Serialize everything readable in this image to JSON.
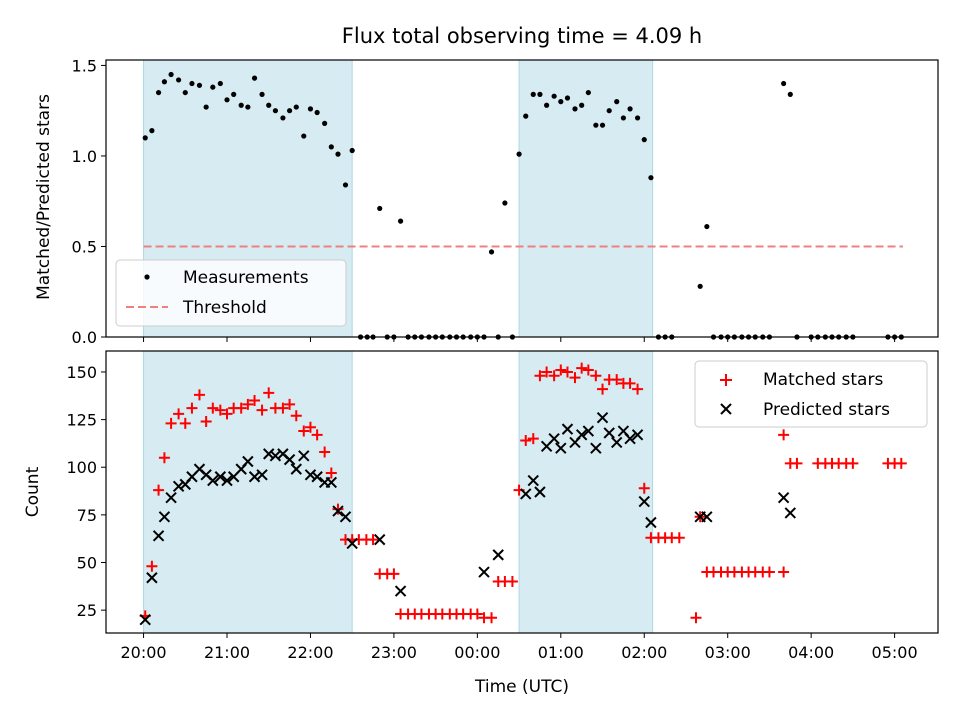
{
  "chart_data": [
    {
      "type": "scatter",
      "title": "Flux total observing time = 4.09 h",
      "xlabel": "",
      "ylabel": "Matched/Predicted stars",
      "xlim": [
        -0.45,
        9.52
      ],
      "ylim": [
        0,
        1.53
      ],
      "yticks": [
        0,
        0.5,
        1.0,
        1.5
      ],
      "ytick_labels": [
        "0.0",
        "0.5",
        "1.0",
        "1.5"
      ],
      "legend_position": "lower-left",
      "shaded_spans": [
        [
          0.0,
          2.5
        ],
        [
          4.5,
          6.1
        ]
      ],
      "threshold": {
        "name": "Threshold",
        "value": 0.5,
        "x_range": [
          0.0,
          9.1
        ],
        "color": "#f08080"
      },
      "series": [
        {
          "name": "Measurements",
          "marker": "dot",
          "color": "#000000",
          "x": [
            0.02,
            0.1,
            0.18,
            0.25,
            0.33,
            0.42,
            0.5,
            0.58,
            0.67,
            0.75,
            0.83,
            0.92,
            1.0,
            1.08,
            1.17,
            1.25,
            1.33,
            1.42,
            1.5,
            1.58,
            1.67,
            1.75,
            1.83,
            1.92,
            2.0,
            2.08,
            2.17,
            2.25,
            2.33,
            2.42,
            2.5,
            2.6,
            2.68,
            2.75,
            2.83,
            2.92,
            3.0,
            3.08,
            3.17,
            3.25,
            3.33,
            3.42,
            3.5,
            3.58,
            3.67,
            3.75,
            3.83,
            3.92,
            4.0,
            4.08,
            4.17,
            4.25,
            4.33,
            4.42,
            4.5,
            4.58,
            4.67,
            4.75,
            4.83,
            4.92,
            5.0,
            5.08,
            5.17,
            5.25,
            5.33,
            5.42,
            5.5,
            5.58,
            5.67,
            5.75,
            5.83,
            5.92,
            6.0,
            6.08,
            6.17,
            6.25,
            6.33,
            6.67,
            6.75,
            6.83,
            6.92,
            7.0,
            7.08,
            7.17,
            7.25,
            7.33,
            7.42,
            7.5,
            7.67,
            7.75,
            7.83,
            8.0,
            8.08,
            8.17,
            8.25,
            8.33,
            8.42,
            8.5,
            8.92,
            9.0,
            9.08
          ],
          "y": [
            1.1,
            1.14,
            1.35,
            1.41,
            1.45,
            1.42,
            1.35,
            1.4,
            1.39,
            1.27,
            1.38,
            1.4,
            1.31,
            1.34,
            1.28,
            1.27,
            1.43,
            1.34,
            1.28,
            1.25,
            1.21,
            1.25,
            1.27,
            1.11,
            1.26,
            1.24,
            1.18,
            1.05,
            1.01,
            0.84,
            1.03,
            0,
            0,
            0,
            0.71,
            0,
            0,
            0.64,
            0,
            0,
            0,
            0,
            0,
            0,
            0,
            0,
            0,
            0,
            0,
            0,
            0.47,
            0,
            0.74,
            0,
            1.01,
            1.22,
            1.34,
            1.34,
            1.28,
            1.33,
            1.3,
            1.32,
            1.26,
            1.28,
            1.35,
            1.17,
            1.17,
            1.25,
            1.3,
            1.21,
            1.26,
            1.21,
            1.09,
            0.88,
            0,
            0,
            0,
            0.28,
            0.61,
            0,
            0,
            0,
            0,
            0,
            0,
            0,
            0,
            0,
            1.4,
            1.34,
            0,
            0,
            0,
            0,
            0,
            0,
            0,
            0,
            0,
            0,
            0
          ]
        },
        {
          "name": "Threshold",
          "marker": "dashed-line",
          "color": "#f08080"
        }
      ]
    },
    {
      "type": "scatter",
      "title": "",
      "xlabel": "Time (UTC)",
      "ylabel": "Count",
      "xlim": [
        -0.45,
        9.52
      ],
      "ylim": [
        13,
        161
      ],
      "yticks": [
        25,
        50,
        75,
        100,
        125,
        150
      ],
      "xticks": [
        0,
        1,
        2,
        3,
        4,
        5,
        6,
        7,
        8,
        9
      ],
      "xtick_labels": [
        "20:00",
        "21:00",
        "22:00",
        "23:00",
        "00:00",
        "01:00",
        "02:00",
        "03:00",
        "04:00",
        "05:00"
      ],
      "legend_position": "upper-right",
      "shaded_spans": [
        [
          0.0,
          2.5
        ],
        [
          4.5,
          6.1
        ]
      ],
      "series": [
        {
          "name": "Matched stars",
          "marker": "plus",
          "color": "#ff0000",
          "x": [
            0.02,
            0.1,
            0.18,
            0.25,
            0.33,
            0.42,
            0.5,
            0.58,
            0.67,
            0.75,
            0.83,
            0.92,
            1.0,
            1.08,
            1.17,
            1.25,
            1.33,
            1.42,
            1.5,
            1.58,
            1.67,
            1.75,
            1.83,
            1.92,
            2.0,
            2.08,
            2.17,
            2.25,
            2.33,
            2.42,
            2.5,
            2.58,
            2.67,
            2.75,
            2.83,
            2.92,
            3.0,
            3.08,
            3.17,
            3.25,
            3.33,
            3.42,
            3.5,
            3.58,
            3.67,
            3.75,
            3.83,
            3.92,
            4.0,
            4.08,
            4.17,
            4.25,
            4.33,
            4.42,
            4.5,
            4.58,
            4.67,
            4.75,
            4.83,
            4.92,
            5.0,
            5.08,
            5.17,
            5.25,
            5.33,
            5.42,
            5.5,
            5.58,
            5.67,
            5.75,
            5.83,
            5.92,
            6.0,
            6.08,
            6.17,
            6.25,
            6.33,
            6.42,
            6.62,
            6.67,
            6.75,
            6.83,
            6.92,
            7.0,
            7.08,
            7.17,
            7.25,
            7.33,
            7.42,
            7.5,
            7.67,
            7.67,
            7.75,
            7.83,
            8.08,
            8.17,
            8.25,
            8.33,
            8.42,
            8.5,
            8.92,
            9.0,
            9.08
          ],
          "y": [
            22,
            48,
            88,
            105,
            123,
            128,
            123,
            131,
            138,
            124,
            131,
            130,
            128,
            131,
            131,
            133,
            135,
            130,
            139,
            131,
            131,
            133,
            127,
            119,
            121,
            117,
            108,
            97,
            78,
            62,
            62,
            62,
            62,
            62,
            44,
            44,
            44,
            23,
            23,
            23,
            23,
            23,
            23,
            23,
            23,
            23,
            23,
            23,
            23,
            21,
            21,
            40,
            40,
            40,
            88,
            114,
            115,
            148,
            150,
            148,
            151,
            150,
            147,
            152,
            151,
            148,
            141,
            146,
            146,
            144,
            144,
            141,
            89,
            63,
            63,
            63,
            63,
            63,
            21,
            74,
            45,
            45,
            45,
            45,
            45,
            45,
            45,
            45,
            45,
            45,
            45,
            117,
            102,
            102,
            102,
            102,
            102,
            102,
            102,
            102,
            102,
            102,
            102
          ]
        },
        {
          "name": "Predicted stars",
          "marker": "x",
          "color": "#000000",
          "x": [
            0.02,
            0.1,
            0.18,
            0.25,
            0.33,
            0.42,
            0.5,
            0.58,
            0.67,
            0.75,
            0.83,
            0.92,
            1.0,
            1.08,
            1.17,
            1.25,
            1.33,
            1.42,
            1.5,
            1.58,
            1.67,
            1.75,
            1.83,
            1.92,
            2.0,
            2.08,
            2.17,
            2.25,
            2.33,
            2.42,
            2.5,
            2.83,
            3.08,
            4.08,
            4.25,
            4.58,
            4.67,
            4.75,
            4.83,
            4.92,
            5.0,
            5.08,
            5.17,
            5.25,
            5.33,
            5.42,
            5.5,
            5.58,
            5.67,
            5.75,
            5.83,
            5.92,
            6.0,
            6.08,
            6.67,
            6.75,
            7.67,
            7.75
          ],
          "y": [
            20,
            42,
            64,
            74,
            84,
            90,
            91,
            95,
            99,
            96,
            93,
            95,
            93,
            95,
            99,
            103,
            95,
            96,
            107,
            106,
            107,
            104,
            99,
            106,
            96,
            95,
            92,
            92,
            77,
            74,
            60,
            62,
            35,
            45,
            54,
            86,
            93,
            87,
            111,
            115,
            110,
            120,
            113,
            117,
            119,
            110,
            126,
            118,
            113,
            119,
            115,
            117,
            82,
            71,
            74,
            74,
            84,
            76
          ]
        }
      ]
    }
  ]
}
